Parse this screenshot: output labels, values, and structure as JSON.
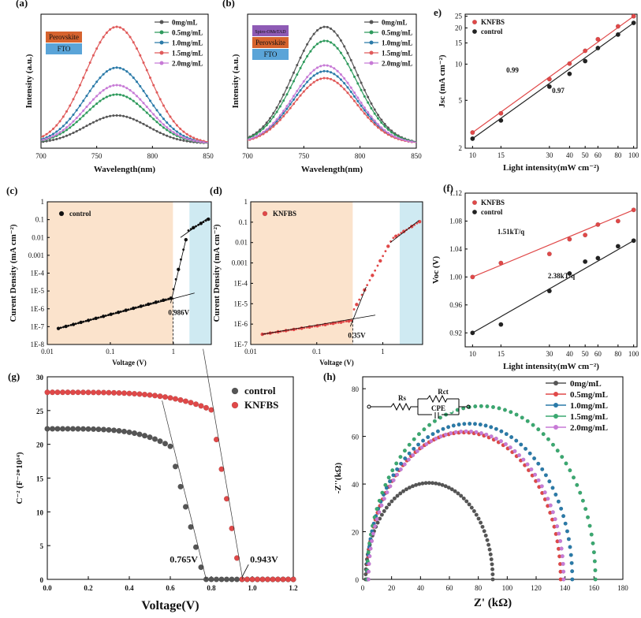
{
  "chart_data": [
    {
      "id": "a",
      "panel_label": "(a)",
      "type": "line",
      "xlabel": "Wavelength(nm)",
      "ylabel": "Intensity (a.u.)",
      "xlim": [
        700,
        850
      ],
      "xticks": [
        "700",
        "750",
        "800",
        "850"
      ],
      "peak_x": 768,
      "series": [
        {
          "name": "0mg/mL",
          "color": "#555555",
          "peak": 0.24
        },
        {
          "name": "0.5mg/mL",
          "color": "#2e9a5c",
          "peak": 0.42
        },
        {
          "name": "1.0mg/mL",
          "color": "#2a7aa8",
          "peak": 0.65
        },
        {
          "name": "1.5mg/mL",
          "color": "#e05a5a",
          "peak": 1.0
        },
        {
          "name": "2.0mg/mL",
          "color": "#c77ad6",
          "peak": 0.5
        }
      ],
      "stack_layers": [
        "Perovskite",
        "FTO"
      ]
    },
    {
      "id": "b",
      "panel_label": "(b)",
      "type": "line",
      "xlabel": "Wavelength(nm)",
      "ylabel": "Intensity (a.u.)",
      "xlim": [
        700,
        850
      ],
      "xticks": [
        "700",
        "750",
        "800",
        "850"
      ],
      "peak_x": 769,
      "series": [
        {
          "name": "0mg/mL",
          "color": "#555555",
          "peak": 1.0
        },
        {
          "name": "0.5mg/mL",
          "color": "#2e9a5c",
          "peak": 0.88
        },
        {
          "name": "1.0mg/mL",
          "color": "#2a7aa8",
          "peak": 0.62
        },
        {
          "name": "1.5mg/mL",
          "color": "#e05a5a",
          "peak": 0.56
        },
        {
          "name": "2.0mg/mL",
          "color": "#c77ad6",
          "peak": 0.67
        }
      ],
      "stack_layers": [
        "Spiro-OMeTAD",
        "Perovskite",
        "FTO"
      ]
    },
    {
      "id": "e",
      "panel_label": "e)",
      "type": "scatter",
      "xscale": "log",
      "yscale": "log",
      "xlabel": "Light intensity(mW cm⁻²)",
      "ylabel": "Jsc (mA cm⁻²)",
      "xlim": [
        9,
        105
      ],
      "ylim": [
        2,
        25
      ],
      "xticks": [
        10,
        15,
        30,
        40,
        50,
        60,
        80,
        100
      ],
      "yticks": [
        2,
        5,
        10,
        15,
        20,
        25
      ],
      "series": [
        {
          "name": "KNFBS",
          "color": "#e04848",
          "x": [
            10,
            15,
            30,
            40,
            50,
            60,
            80,
            100
          ],
          "y": [
            2.7,
            3.9,
            7.5,
            10.1,
            12.9,
            16.1,
            20.6,
            25.0
          ],
          "fit_label": "0.99"
        },
        {
          "name": "control",
          "color": "#222222",
          "x": [
            10,
            15,
            30,
            40,
            50,
            60,
            80,
            100
          ],
          "y": [
            2.4,
            3.4,
            6.5,
            8.3,
            10.6,
            13.6,
            17.6,
            22.0
          ],
          "fit_label": "0.97"
        }
      ]
    },
    {
      "id": "f",
      "panel_label": "(f)",
      "type": "scatter",
      "xscale": "log",
      "xlabel": "Light intensity(mW cm⁻²)",
      "ylabel": "Voc (V)",
      "xlim": [
        9,
        105
      ],
      "ylim": [
        0.9,
        1.12
      ],
      "xticks": [
        10,
        15,
        30,
        40,
        50,
        60,
        80,
        100
      ],
      "yticks": [
        "0.92",
        "0.96",
        "1.00",
        "1.04",
        "1.08",
        "1.12"
      ],
      "series": [
        {
          "name": "KNFBS",
          "color": "#e04848",
          "x": [
            10,
            15,
            30,
            40,
            50,
            60,
            80,
            100
          ],
          "y": [
            1.0,
            1.02,
            1.033,
            1.054,
            1.06,
            1.075,
            1.08,
            1.096
          ],
          "fit_label": "1.51kT/q"
        },
        {
          "name": "control",
          "color": "#222222",
          "x": [
            10,
            15,
            30,
            40,
            50,
            60,
            80,
            100
          ],
          "y": [
            0.92,
            0.932,
            0.98,
            1.005,
            1.022,
            1.027,
            1.044,
            1.052
          ],
          "fit_label": "2.38kT/q"
        }
      ]
    },
    {
      "id": "c",
      "panel_label": "(c)",
      "type": "line",
      "yscale": "log",
      "xscale": "log",
      "xlabel": "Voltage (V)",
      "ylabel": "Curent Density (mA cm⁻²)",
      "xlim": [
        0.01,
        4
      ],
      "ylim": [
        1e-08,
        1
      ],
      "xticks": [
        "0.01",
        "0.1",
        "1"
      ],
      "yticks": [
        "1E-8",
        "1E-7",
        "1E-6",
        "1E-5",
        "1E-4",
        "0.001",
        "0.01",
        "0.1",
        "1"
      ],
      "legend": "control",
      "color": "#111111",
      "annotation": "0.986V",
      "vtfl": 0.986
    },
    {
      "id": "d",
      "panel_label": "(d)",
      "type": "line",
      "yscale": "log",
      "xscale": "log",
      "xlabel": "Voltage (V)",
      "ylabel": "Curent Density (mA cm⁻²)",
      "xlim": [
        0.01,
        4
      ],
      "ylim": [
        1e-07,
        1
      ],
      "xticks": [
        "0.01",
        "0.1",
        "1"
      ],
      "yticks": [
        "1E-7",
        "1E-6",
        "1E-5",
        "1E-4",
        "0.001",
        "0.01",
        "0.1",
        "1"
      ],
      "legend": "KNFBS",
      "color": "#e04848",
      "annotation": "0.35V",
      "vtfl": 0.35
    },
    {
      "id": "g",
      "panel_label": "(g)",
      "type": "scatter",
      "xlabel": "Voltage(V)",
      "ylabel": "C⁻² (F⁻²*10¹⁴)",
      "xlim": [
        0,
        1.2
      ],
      "ylim": [
        0,
        30
      ],
      "xticks": [
        "0.0",
        "0.2",
        "0.4",
        "0.6",
        "0.8",
        "1.0",
        "1.2"
      ],
      "yticks": [
        "0",
        "5",
        "10",
        "15",
        "20",
        "25",
        "30"
      ],
      "series": [
        {
          "name": "control",
          "color": "#555555",
          "vbi": 0.765,
          "plateau": 22.3,
          "knee": 0.6
        },
        {
          "name": "KNFBS",
          "color": "#e04848",
          "vbi": 0.943,
          "plateau": 27.7,
          "knee": 0.8
        }
      ],
      "annotations": [
        "0.765V",
        "0.943V"
      ]
    },
    {
      "id": "h",
      "panel_label": "(h)",
      "type": "scatter",
      "xlabel": "Z' (kΩ)",
      "ylabel": "-Z''(kΩ)",
      "xlim": [
        0,
        180
      ],
      "ylim": [
        0,
        85
      ],
      "xticks": [
        "0",
        "20",
        "40",
        "60",
        "80",
        "100",
        "120",
        "140",
        "160",
        "180"
      ],
      "yticks": [
        "0",
        "20",
        "40",
        "60",
        "80"
      ],
      "series": [
        {
          "name": "0mg/mL",
          "color": "#555555",
          "z_start": 2,
          "z_end": 90
        },
        {
          "name": "0.5mg/mL",
          "color": "#e04848",
          "z_start": 3,
          "z_end": 137
        },
        {
          "name": "1.0mg/mL",
          "color": "#2a7aa8",
          "z_start": 3,
          "z_end": 145
        },
        {
          "name": "1.5mg/mL",
          "color": "#3aa870",
          "z_start": 3,
          "z_end": 161
        },
        {
          "name": "2.0mg/mL",
          "color": "#c77ad6",
          "z_start": 4,
          "z_end": 139
        }
      ],
      "circuit_labels": [
        "Rs",
        "Rct",
        "CPE"
      ]
    }
  ]
}
